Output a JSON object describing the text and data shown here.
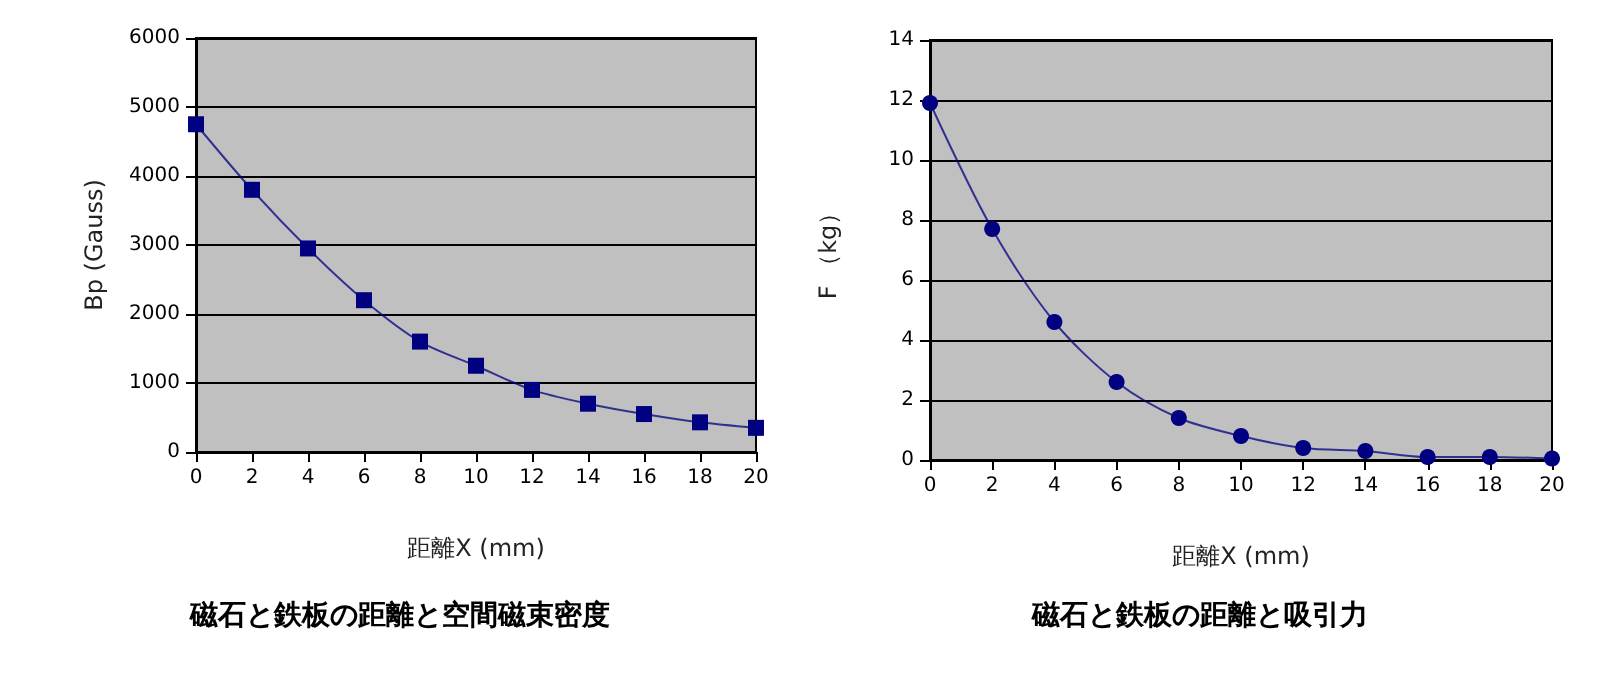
{
  "chart_data": [
    {
      "type": "line",
      "title": "磁石と鉄板の距離と空間磁束密度",
      "xlabel": "距離X (mm)",
      "ylabel": "Bp (Gauss)",
      "x": [
        0,
        2,
        4,
        6,
        8,
        10,
        12,
        14,
        16,
        18,
        20
      ],
      "series": [
        {
          "color": "#000080",
          "values": [
            4750,
            3800,
            2950,
            2200,
            1600,
            1250,
            900,
            700,
            550,
            430,
            350
          ]
        }
      ],
      "xlim": [
        0,
        20
      ],
      "xticks": [
        0,
        2,
        4,
        6,
        8,
        10,
        12,
        14,
        16,
        18,
        20
      ],
      "ylim": [
        0,
        6000
      ],
      "yticks": [
        0,
        1000,
        2000,
        3000,
        4000,
        5000,
        6000
      ],
      "grid": "y",
      "marker": "square",
      "line_style": "solid"
    },
    {
      "type": "line",
      "title": "磁石と鉄板の距離と吸引力",
      "xlabel": "距離X (mm)",
      "ylabel": "F （kg）",
      "x": [
        0,
        2,
        4,
        6,
        8,
        10,
        12,
        14,
        16,
        18,
        20
      ],
      "series": [
        {
          "color": "#000080",
          "values": [
            11.9,
            7.7,
            4.6,
            2.6,
            1.4,
            0.8,
            0.4,
            0.3,
            0.1,
            0.1,
            0.05
          ]
        }
      ],
      "xlim": [
        0,
        20
      ],
      "xticks": [
        0,
        2,
        4,
        6,
        8,
        10,
        12,
        14,
        16,
        18,
        20
      ],
      "ylim": [
        0,
        14
      ],
      "yticks": [
        0,
        2,
        4,
        6,
        8,
        10,
        12,
        14
      ],
      "grid": "y",
      "marker": "circle",
      "line_style": "solid"
    }
  ]
}
